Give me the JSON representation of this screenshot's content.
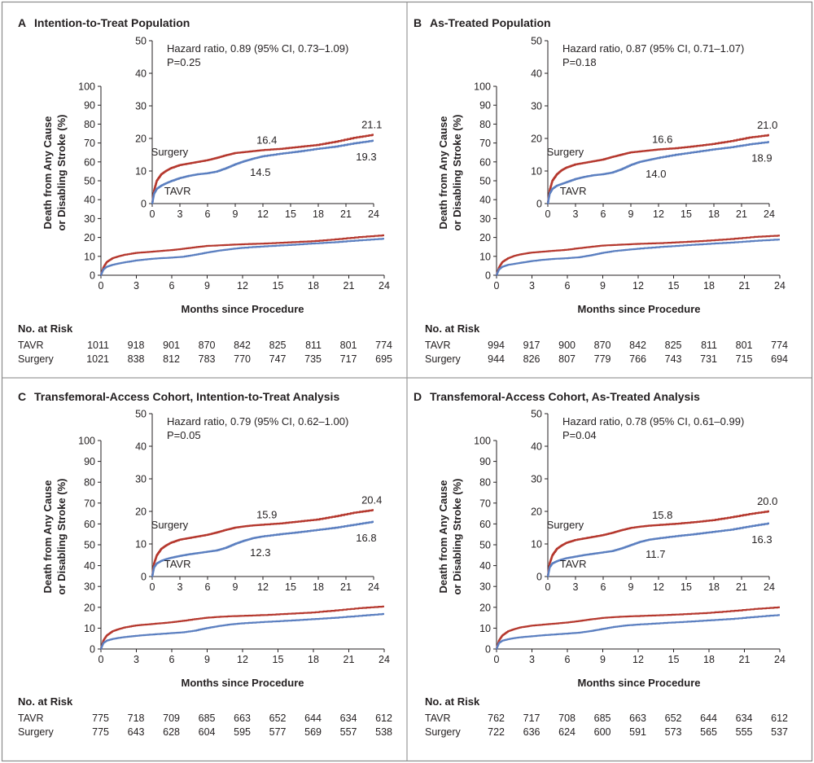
{
  "figure": {
    "colors": {
      "border": "#8a8a8a",
      "divider": "#9a9a9a",
      "text": "#231f20",
      "axis": "#231f20"
    },
    "ylabel_lines": [
      "Death from Any Cause",
      "or Disabling Stroke (%)"
    ],
    "xlabel": "Months since Procedure",
    "risk_header": "No. at Risk"
  },
  "chart_data": [
    {
      "type": "line",
      "panel_letter": "A",
      "title": "Intention-to-Treat Population",
      "xlabel": "Months since Procedure",
      "ylabel": "Death from Any Cause or Disabling Stroke (%)",
      "xlim": [
        0,
        24
      ],
      "ylim": [
        0,
        100
      ],
      "xticks": [
        0,
        3,
        6,
        9,
        12,
        15,
        18,
        21,
        24
      ],
      "yticks": [
        0,
        10,
        20,
        30,
        40,
        50,
        60,
        70,
        80,
        90,
        100
      ],
      "inset": {
        "xlim": [
          0,
          24
        ],
        "ylim": [
          0,
          50
        ],
        "yticks": [
          0,
          10,
          20,
          30,
          40,
          50
        ],
        "xticks": [
          0,
          3,
          6,
          9,
          12,
          15,
          18,
          21,
          24
        ]
      },
      "hazard_ratio": "Hazard ratio, 0.89 (95% CI, 0.73–1.09)",
      "p_value": "P=0.25",
      "labels": {
        "surgery_12": "16.4",
        "tavr_12": "14.5",
        "surgery_24": "21.1",
        "tavr_24": "19.3"
      },
      "series": [
        {
          "name": "Surgery",
          "color": "#b5382e",
          "x": [
            0,
            0.2,
            0.5,
            1,
            1.5,
            2,
            3,
            4,
            5,
            6,
            7,
            8,
            9,
            10,
            11,
            12,
            14,
            16,
            18,
            20,
            22,
            24
          ],
          "y": [
            0,
            4.0,
            7.0,
            9.0,
            10.0,
            10.8,
            11.8,
            12.3,
            12.8,
            13.3,
            14.0,
            14.8,
            15.5,
            15.8,
            16.1,
            16.4,
            16.8,
            17.4,
            18.0,
            19.0,
            20.2,
            21.1
          ]
        },
        {
          "name": "TAVR",
          "color": "#5b7fc0",
          "x": [
            0,
            0.2,
            0.5,
            1,
            1.5,
            2,
            3,
            4,
            5,
            6,
            7,
            8,
            9,
            10,
            11,
            12,
            14,
            16,
            18,
            20,
            22,
            24
          ],
          "y": [
            0,
            3.0,
            4.5,
            5.5,
            6.2,
            6.8,
            7.8,
            8.5,
            9.0,
            9.3,
            9.8,
            10.8,
            12.0,
            13.0,
            13.8,
            14.5,
            15.3,
            16.0,
            16.8,
            17.5,
            18.5,
            19.3
          ]
        }
      ],
      "risk": [
        {
          "label": "TAVR",
          "values": [
            1011,
            918,
            901,
            870,
            842,
            825,
            811,
            801,
            774
          ]
        },
        {
          "label": "Surgery",
          "values": [
            1021,
            838,
            812,
            783,
            770,
            747,
            735,
            717,
            695
          ]
        }
      ]
    },
    {
      "type": "line",
      "panel_letter": "B",
      "title": "As-Treated Population",
      "xlabel": "Months since Procedure",
      "ylabel": "Death from Any Cause or Disabling Stroke (%)",
      "xlim": [
        0,
        24
      ],
      "ylim": [
        0,
        100
      ],
      "xticks": [
        0,
        3,
        6,
        9,
        12,
        15,
        18,
        21,
        24
      ],
      "yticks": [
        0,
        10,
        20,
        30,
        40,
        50,
        60,
        70,
        80,
        90,
        100
      ],
      "inset": {
        "xlim": [
          0,
          24
        ],
        "ylim": [
          0,
          50
        ],
        "yticks": [
          0,
          10,
          20,
          30,
          40,
          50
        ],
        "xticks": [
          0,
          3,
          6,
          9,
          12,
          15,
          18,
          21,
          24
        ]
      },
      "hazard_ratio": "Hazard ratio, 0.87 (95% CI, 0.71–1.07)",
      "p_value": "P=0.18",
      "labels": {
        "surgery_12": "16.6",
        "tavr_12": "14.0",
        "surgery_24": "21.0",
        "tavr_24": "18.9"
      },
      "series": [
        {
          "name": "Surgery",
          "color": "#b5382e",
          "x": [
            0,
            0.2,
            0.5,
            1,
            1.5,
            2,
            3,
            4,
            5,
            6,
            7,
            8,
            9,
            10,
            11,
            12,
            14,
            16,
            18,
            20,
            22,
            24
          ],
          "y": [
            0,
            4.0,
            7.0,
            9.0,
            10.2,
            11.0,
            12.0,
            12.5,
            13.0,
            13.5,
            14.3,
            15.0,
            15.7,
            16.0,
            16.3,
            16.6,
            17.0,
            17.6,
            18.3,
            19.2,
            20.3,
            21.0
          ]
        },
        {
          "name": "TAVR",
          "color": "#5b7fc0",
          "x": [
            0,
            0.2,
            0.5,
            1,
            1.5,
            2,
            3,
            4,
            5,
            6,
            7,
            8,
            9,
            10,
            11,
            12,
            14,
            16,
            18,
            20,
            22,
            24
          ],
          "y": [
            0,
            3.0,
            4.5,
            5.5,
            6.0,
            6.5,
            7.5,
            8.2,
            8.7,
            9.0,
            9.5,
            10.5,
            11.8,
            12.8,
            13.4,
            14.0,
            15.0,
            15.8,
            16.6,
            17.3,
            18.2,
            18.9
          ]
        }
      ],
      "risk": [
        {
          "label": "TAVR",
          "values": [
            994,
            917,
            900,
            870,
            842,
            825,
            811,
            801,
            774
          ]
        },
        {
          "label": "Surgery",
          "values": [
            944,
            826,
            807,
            779,
            766,
            743,
            731,
            715,
            694
          ]
        }
      ]
    },
    {
      "type": "line",
      "panel_letter": "C",
      "title": "Transfemoral-Access Cohort, Intention-to-Treat Analysis",
      "xlabel": "Months since Procedure",
      "ylabel": "Death from Any Cause or Disabling Stroke (%)",
      "xlim": [
        0,
        24
      ],
      "ylim": [
        0,
        100
      ],
      "xticks": [
        0,
        3,
        6,
        9,
        12,
        15,
        18,
        21,
        24
      ],
      "yticks": [
        0,
        10,
        20,
        30,
        40,
        50,
        60,
        70,
        80,
        90,
        100
      ],
      "inset": {
        "xlim": [
          0,
          24
        ],
        "ylim": [
          0,
          50
        ],
        "yticks": [
          0,
          10,
          20,
          30,
          40,
          50
        ],
        "xticks": [
          0,
          3,
          6,
          9,
          12,
          15,
          18,
          21,
          24
        ]
      },
      "hazard_ratio": "Hazard ratio, 0.79 (95% CI, 0.62–1.00)",
      "p_value": "P=0.05",
      "labels": {
        "surgery_12": "15.9",
        "tavr_12": "12.3",
        "surgery_24": "20.4",
        "tavr_24": "16.8"
      },
      "series": [
        {
          "name": "Surgery",
          "color": "#b5382e",
          "x": [
            0,
            0.2,
            0.5,
            1,
            1.5,
            2,
            3,
            4,
            5,
            6,
            7,
            8,
            9,
            10,
            11,
            12,
            14,
            16,
            18,
            20,
            22,
            24
          ],
          "y": [
            0,
            4.0,
            6.5,
            8.5,
            9.5,
            10.3,
            11.3,
            11.8,
            12.3,
            12.8,
            13.5,
            14.3,
            15.0,
            15.4,
            15.7,
            15.9,
            16.3,
            16.9,
            17.5,
            18.5,
            19.6,
            20.4
          ]
        },
        {
          "name": "TAVR",
          "color": "#5b7fc0",
          "x": [
            0,
            0.2,
            0.5,
            1,
            1.5,
            2,
            3,
            4,
            5,
            6,
            7,
            8,
            9,
            10,
            11,
            12,
            14,
            16,
            18,
            20,
            22,
            24
          ],
          "y": [
            0,
            2.8,
            4.0,
            4.8,
            5.3,
            5.7,
            6.3,
            6.8,
            7.2,
            7.6,
            8.0,
            8.8,
            10.0,
            11.0,
            11.8,
            12.3,
            13.0,
            13.6,
            14.3,
            15.0,
            15.9,
            16.8
          ]
        }
      ],
      "risk": [
        {
          "label": "TAVR",
          "values": [
            775,
            718,
            709,
            685,
            663,
            652,
            644,
            634,
            612
          ]
        },
        {
          "label": "Surgery",
          "values": [
            775,
            643,
            628,
            604,
            595,
            577,
            569,
            557,
            538
          ]
        }
      ]
    },
    {
      "type": "line",
      "panel_letter": "D",
      "title": "Transfemoral-Access Cohort, As-Treated Analysis",
      "xlabel": "Months since Procedure",
      "ylabel": "Death from Any Cause or Disabling Stroke (%)",
      "xlim": [
        0,
        24
      ],
      "ylim": [
        0,
        100
      ],
      "xticks": [
        0,
        3,
        6,
        9,
        12,
        15,
        18,
        21,
        24
      ],
      "yticks": [
        0,
        10,
        20,
        30,
        40,
        50,
        60,
        70,
        80,
        90,
        100
      ],
      "inset": {
        "xlim": [
          0,
          24
        ],
        "ylim": [
          0,
          50
        ],
        "yticks": [
          0,
          10,
          20,
          30,
          40,
          50
        ],
        "xticks": [
          0,
          3,
          6,
          9,
          12,
          15,
          18,
          21,
          24
        ]
      },
      "hazard_ratio": "Hazard ratio, 0.78 (95% CI, 0.61–0.99)",
      "p_value": "P=0.04",
      "labels": {
        "surgery_12": "15.8",
        "tavr_12": "11.7",
        "surgery_24": "20.0",
        "tavr_24": "16.3"
      },
      "series": [
        {
          "name": "Surgery",
          "color": "#b5382e",
          "x": [
            0,
            0.2,
            0.5,
            1,
            1.5,
            2,
            3,
            4,
            5,
            6,
            7,
            8,
            9,
            10,
            11,
            12,
            14,
            16,
            18,
            20,
            22,
            24
          ],
          "y": [
            0,
            4.0,
            6.5,
            8.5,
            9.5,
            10.3,
            11.2,
            11.7,
            12.2,
            12.7,
            13.4,
            14.2,
            14.9,
            15.3,
            15.6,
            15.8,
            16.2,
            16.7,
            17.3,
            18.2,
            19.2,
            20.0
          ]
        },
        {
          "name": "TAVR",
          "color": "#5b7fc0",
          "x": [
            0,
            0.2,
            0.5,
            1,
            1.5,
            2,
            3,
            4,
            5,
            6,
            7,
            8,
            9,
            10,
            11,
            12,
            14,
            16,
            18,
            20,
            22,
            24
          ],
          "y": [
            0,
            2.8,
            4.0,
            4.7,
            5.2,
            5.6,
            6.1,
            6.6,
            7.0,
            7.4,
            7.8,
            8.6,
            9.6,
            10.6,
            11.3,
            11.7,
            12.4,
            13.0,
            13.7,
            14.4,
            15.4,
            16.3
          ]
        }
      ],
      "risk": [
        {
          "label": "TAVR",
          "values": [
            762,
            717,
            708,
            685,
            663,
            652,
            644,
            634,
            612
          ]
        },
        {
          "label": "Surgery",
          "values": [
            722,
            636,
            624,
            600,
            591,
            573,
            565,
            555,
            537
          ]
        }
      ]
    }
  ]
}
